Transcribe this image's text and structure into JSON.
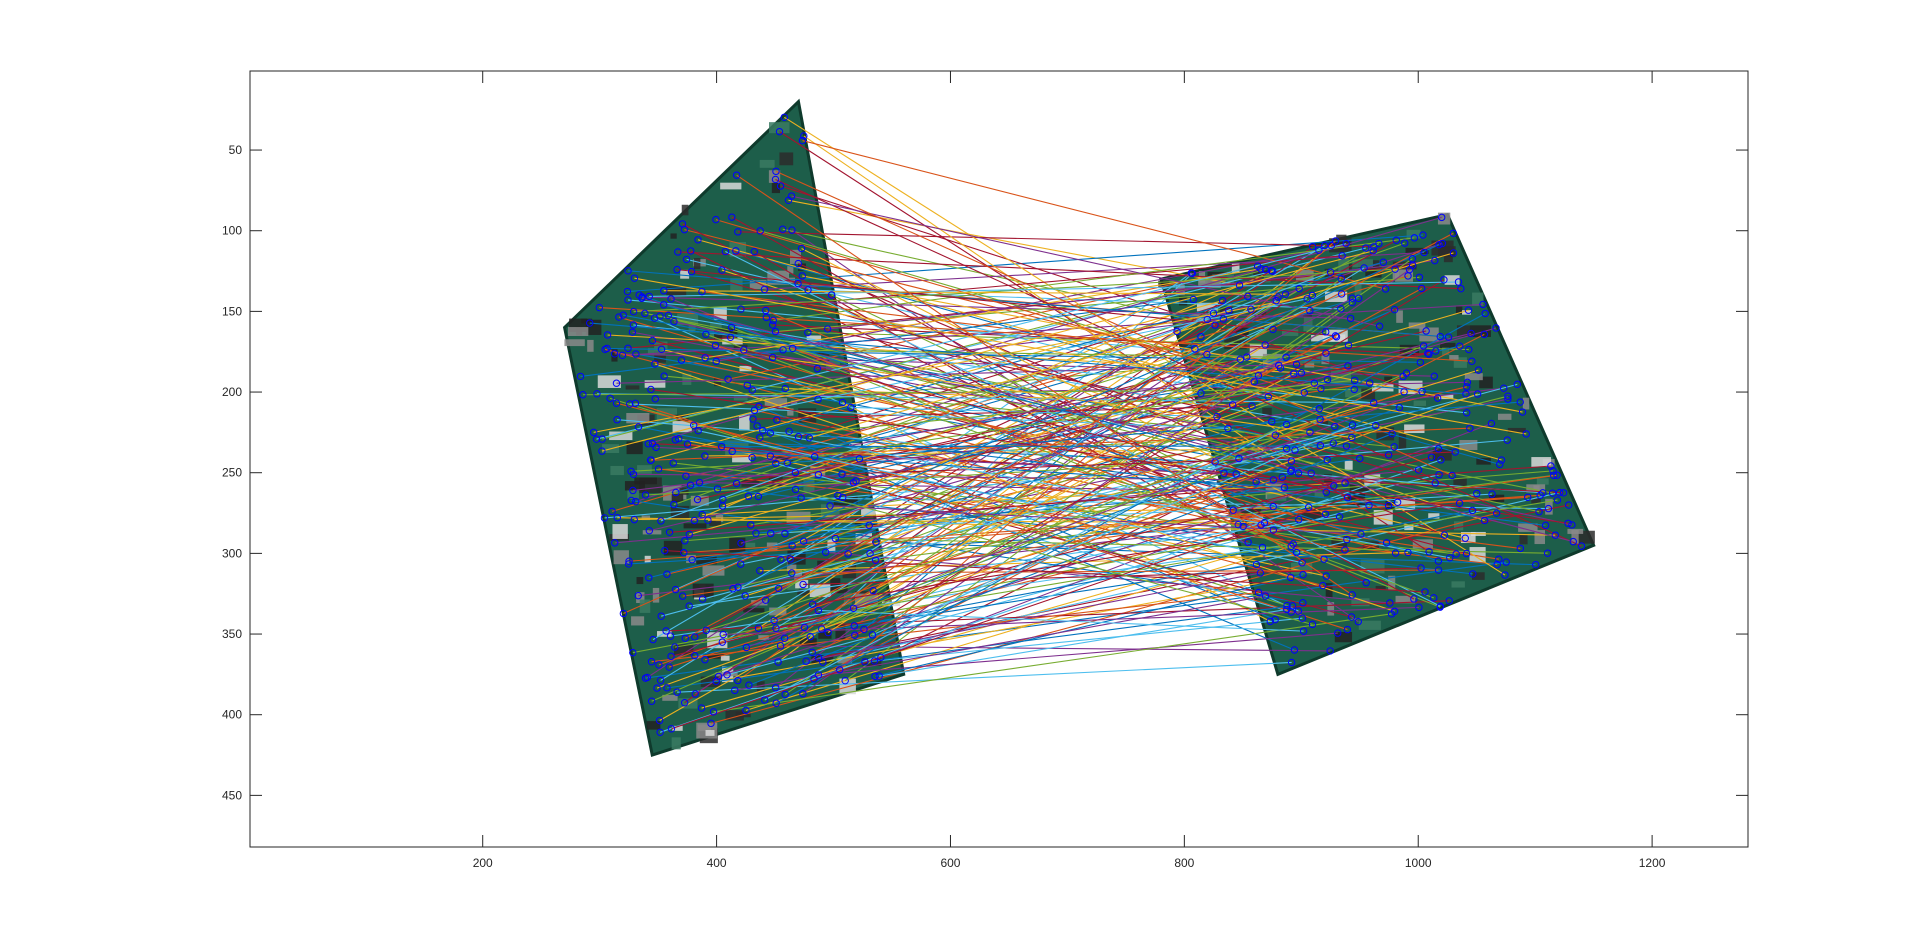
{
  "chart_data": {
    "type": "scatter",
    "description": "feature point matches between two images of a PCB board, drawn as colored line segments with blue circle markers at each endpoint",
    "xlim": [
      1,
      1282
    ],
    "ylim": [
      1,
      482
    ],
    "y_reversed": true,
    "grid": false,
    "x_ticks": [
      200,
      400,
      600,
      800,
      1000,
      1200
    ],
    "y_ticks": [
      50,
      100,
      150,
      200,
      250,
      300,
      350,
      400,
      450
    ],
    "x_tick_labels": [
      "200",
      "400",
      "600",
      "800",
      "1000",
      "1200"
    ],
    "y_tick_labels": [
      "50",
      "100",
      "150",
      "200",
      "250",
      "300",
      "350",
      "400",
      "450"
    ],
    "line_colors": [
      "#0072BD",
      "#D95319",
      "#EDB120",
      "#7E2F8E",
      "#77AC30",
      "#4DBEEE",
      "#A2142F"
    ],
    "marker_color": "#0000FF",
    "matches_left_region": {
      "x_range": [
        275,
        560
      ],
      "y_range": [
        15,
        420
      ]
    },
    "matches_right_region": {
      "x_range": [
        780,
        1160
      ],
      "y_range": [
        85,
        365
      ]
    },
    "match_count_estimate": 300
  }
}
